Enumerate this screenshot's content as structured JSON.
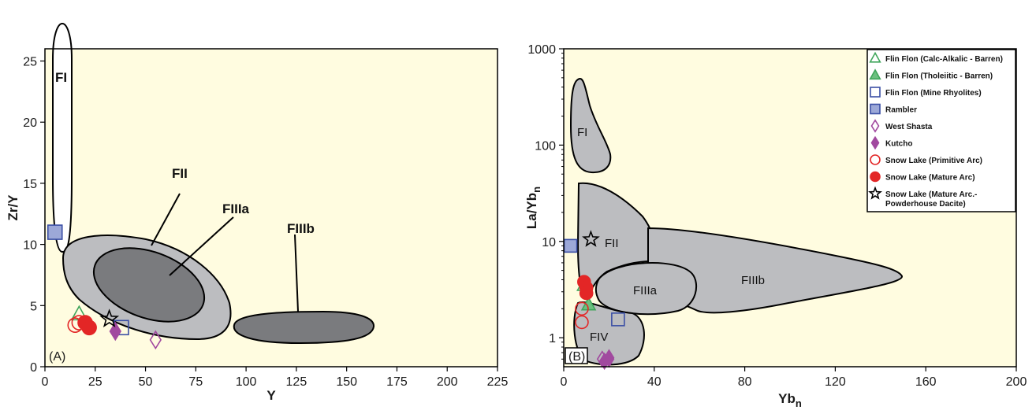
{
  "colors": {
    "plot_bg": "#fffce0",
    "light_gray": "#bcbdc0",
    "dark_gray": "#7a7b7e",
    "green": "#3fa55a",
    "green_fill": "#6cc080",
    "blue": "#3b4fa5",
    "blue_fill": "#9ca8d8",
    "purple": "#a1499f",
    "red": "#e32626"
  },
  "chart_data": [
    {
      "type": "scatter",
      "panel_label": "(A)",
      "xlabel": "Y",
      "ylabel": "Zr/Y",
      "xlim": [
        0,
        225
      ],
      "ylim": [
        0,
        26
      ],
      "xticks": [
        "0",
        "25",
        "50",
        "75",
        "100",
        "125",
        "150",
        "175",
        "200",
        "225"
      ],
      "yticks": [
        "0",
        "5",
        "10",
        "15",
        "20",
        "25"
      ],
      "x_log": false,
      "y_log": false,
      "fields": [
        {
          "name": "FI",
          "label": "FI"
        },
        {
          "name": "FII",
          "label": "FII"
        },
        {
          "name": "FIIIa",
          "label": "FIIIa"
        },
        {
          "name": "FIIIb",
          "label": "FIIIb"
        }
      ],
      "points": [
        {
          "series": "Flin Flon (Calc-Alkalic - Barren)",
          "x": 17,
          "y": 4.3
        },
        {
          "series": "Flin Flon (Mine Rhyolites)",
          "x": 38,
          "y": 3.2
        },
        {
          "series": "Rambler",
          "x": 5,
          "y": 11.0
        },
        {
          "series": "West Shasta",
          "x": 55,
          "y": 2.2
        },
        {
          "series": "Kutcho",
          "x": 35,
          "y": 2.9
        },
        {
          "series": "Snow Lake (Primitive Arc)",
          "x": 15,
          "y": 3.4
        },
        {
          "series": "Snow Lake (Primitive Arc)",
          "x": 17,
          "y": 3.6
        },
        {
          "series": "Snow Lake (Mature Arc)",
          "x": 20,
          "y": 3.6
        },
        {
          "series": "Snow Lake (Mature Arc)",
          "x": 22,
          "y": 3.2
        },
        {
          "series": "Snow Lake (Mature Arc.- Powderhouse Dacite)",
          "x": 32,
          "y": 3.9
        }
      ]
    },
    {
      "type": "scatter",
      "panel_label": "(B)",
      "xlabel": "Yb",
      "xlabel_sub": "n",
      "ylabel": "La/Yb",
      "ylabel_sub": "n",
      "xlim": [
        0,
        200
      ],
      "ylim": [
        0.5,
        1000
      ],
      "xticks": [
        "0",
        "40",
        "80",
        "120",
        "160",
        "200"
      ],
      "yticks": [
        "1",
        "10",
        "100",
        "1000"
      ],
      "x_log": false,
      "y_log": true,
      "fields": [
        {
          "name": "FI",
          "label": "FI"
        },
        {
          "name": "FII",
          "label": "FII"
        },
        {
          "name": "FIIIa",
          "label": "FIIIa"
        },
        {
          "name": "FIIIb",
          "label": "FIIIb"
        },
        {
          "name": "FIV",
          "label": "FIV"
        }
      ],
      "points": [
        {
          "series": "Flin Flon (Calc-Alkalic - Barren)",
          "x": 9,
          "y": 3.5
        },
        {
          "series": "Flin Flon (Tholeiitic - Barren)",
          "x": 11,
          "y": 2.2
        },
        {
          "series": "Flin Flon (Mine Rhyolites)",
          "x": 24,
          "y": 1.55
        },
        {
          "series": "Rambler",
          "x": 3,
          "y": 9
        },
        {
          "series": "West Shasta",
          "x": 17,
          "y": 0.6
        },
        {
          "series": "West Shasta",
          "x": 20,
          "y": 0.62
        },
        {
          "series": "Kutcho",
          "x": 18,
          "y": 0.57
        },
        {
          "series": "Kutcho",
          "x": 20,
          "y": 0.6
        },
        {
          "series": "Snow Lake (Primitive Arc)",
          "x": 8,
          "y": 2.0
        },
        {
          "series": "Snow Lake (Primitive Arc)",
          "x": 8,
          "y": 1.45
        },
        {
          "series": "Snow Lake (Mature Arc)",
          "x": 9,
          "y": 3.8
        },
        {
          "series": "Snow Lake (Mature Arc)",
          "x": 10,
          "y": 3.3
        },
        {
          "series": "Snow Lake (Mature Arc)",
          "x": 10,
          "y": 2.9
        },
        {
          "series": "Snow Lake (Mature Arc.- Powderhouse Dacite)",
          "x": 12,
          "y": 10.5
        }
      ]
    }
  ],
  "legend": {
    "placement": "top-right of panel B",
    "entries": [
      {
        "label": "Flin Flon (Calc-Alkalic - Barren)",
        "symbol": "triangle-open-green"
      },
      {
        "label": "Flin Flon (Tholeiitic - Barren)",
        "symbol": "triangle-filled-green"
      },
      {
        "label": "Flin Flon (Mine Rhyolites)",
        "symbol": "square-open-blue"
      },
      {
        "label": "Rambler",
        "symbol": "square-filled-blue"
      },
      {
        "label": "West Shasta",
        "symbol": "diamond-open-purple"
      },
      {
        "label": "Kutcho",
        "symbol": "diamond-filled-purple"
      },
      {
        "label": "Snow Lake (Primitive Arc)",
        "symbol": "circle-open-red"
      },
      {
        "label": "Snow Lake (Mature Arc)",
        "symbol": "circle-filled-red"
      },
      {
        "label": "Snow Lake (Mature Arc.- Powderhouse Dacite)",
        "lines": [
          "Snow Lake (Mature Arc.-",
          "Powderhouse Dacite)"
        ],
        "symbol": "star-open-black"
      }
    ]
  }
}
